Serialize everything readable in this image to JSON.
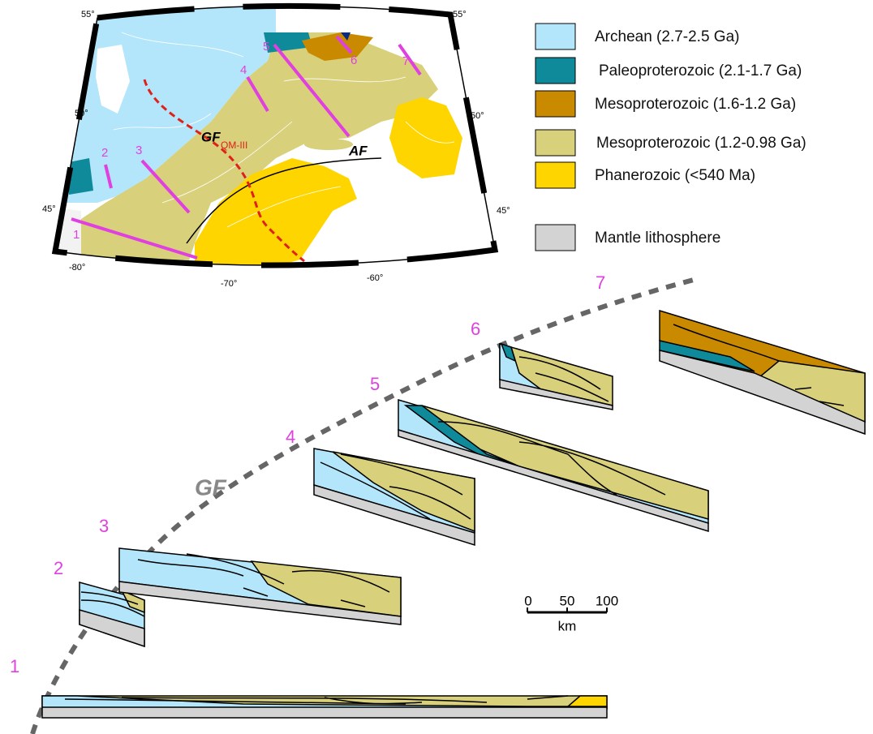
{
  "map": {
    "lat_labels": [
      "55°",
      "50°",
      "45°"
    ],
    "lon_labels": [
      "-80°",
      "-70°",
      "-60°"
    ],
    "fault_labels": [
      "GF",
      "AF"
    ],
    "line_label": "QM-III",
    "profile_numbers": [
      "1",
      "2",
      "3",
      "4",
      "5",
      "6",
      "7"
    ]
  },
  "legend": [
    "Archean (2.7-2.5 Ga)",
    "Paleoproterozoic (2.1-1.7 Ga)",
    "Mesoproterozoic (1.6-1.2 Ga)",
    "Mesoproterozoic (1.2-0.98 Ga)",
    "Phanerozoic (<540 Ma)",
    "Mantle lithosphere"
  ],
  "sections": {
    "numbers": [
      "1",
      "2",
      "3",
      "4",
      "5",
      "6",
      "7"
    ],
    "trace_label": "GF"
  },
  "scale_bar": {
    "ticks": [
      "0",
      "50",
      "100"
    ],
    "unit": "km"
  }
}
